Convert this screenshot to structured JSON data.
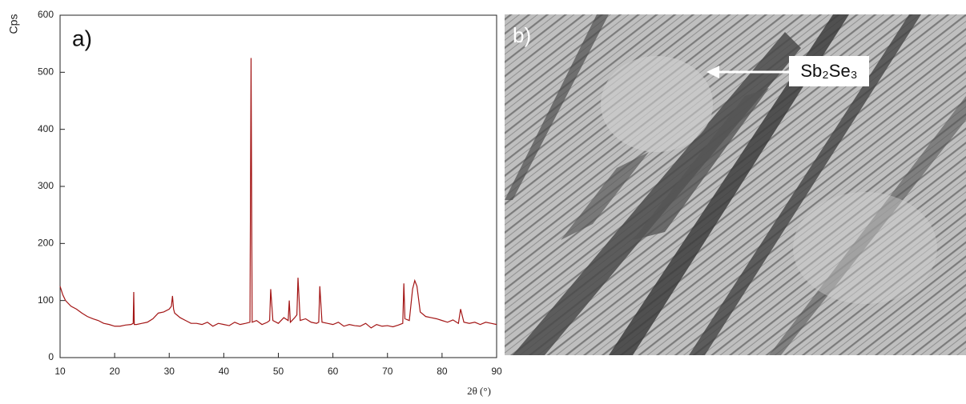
{
  "chart_data": {
    "type": "line",
    "annotation": "a)",
    "xlabel": "2θ (°)",
    "ylabel": "Cps",
    "x": [
      10,
      10.5,
      11,
      11.5,
      12,
      13,
      14,
      15,
      16,
      17,
      18,
      19,
      20,
      21,
      22,
      23,
      23.4,
      23.5,
      23.6,
      24,
      25,
      26,
      27,
      28,
      29,
      30,
      30.4,
      30.6,
      30.8,
      31,
      32,
      33,
      34,
      35,
      36,
      37,
      38,
      39,
      40,
      41,
      42,
      43,
      44,
      44.8,
      45,
      45.2,
      46,
      47,
      48,
      48.4,
      48.6,
      49,
      50,
      51,
      51.8,
      52,
      52.2,
      53,
      53.4,
      53.6,
      54,
      55,
      56,
      57,
      57.4,
      57.6,
      58,
      59,
      60,
      61,
      62,
      63,
      64,
      65,
      66,
      67,
      68,
      69,
      70,
      71,
      72,
      72.8,
      73,
      73.2,
      74,
      74.6,
      75,
      75.4,
      76,
      77,
      78,
      79,
      80,
      81,
      82,
      83,
      83.4,
      84,
      85,
      86,
      87,
      88,
      89,
      90
    ],
    "series": [
      {
        "color": "#a31515",
        "values": [
          125,
          110,
          100,
          95,
          90,
          85,
          78,
          72,
          68,
          65,
          60,
          58,
          55,
          55,
          57,
          58,
          60,
          115,
          58,
          58,
          60,
          62,
          68,
          78,
          80,
          85,
          90,
          108,
          85,
          78,
          70,
          65,
          60,
          60,
          58,
          62,
          55,
          60,
          58,
          56,
          62,
          58,
          60,
          62,
          525,
          62,
          65,
          58,
          62,
          65,
          120,
          65,
          60,
          70,
          65,
          100,
          62,
          70,
          75,
          140,
          65,
          68,
          62,
          60,
          62,
          125,
          62,
          60,
          58,
          62,
          55,
          58,
          56,
          55,
          60,
          52,
          58,
          55,
          56,
          54,
          57,
          60,
          130,
          68,
          65,
          120,
          135,
          125,
          80,
          72,
          70,
          68,
          65,
          62,
          66,
          60,
          85,
          62,
          60,
          62,
          58,
          62,
          60,
          58
        ]
      }
    ],
    "xlim": [
      10,
      90
    ],
    "xticks": [
      10,
      20,
      30,
      40,
      50,
      60,
      70,
      80,
      90
    ],
    "ylim": [
      0,
      600
    ],
    "yticks": [
      0,
      100,
      200,
      300,
      400,
      500,
      600
    ]
  },
  "image_panel": {
    "label": "b)",
    "annotation": "Sb₂Se₃"
  }
}
